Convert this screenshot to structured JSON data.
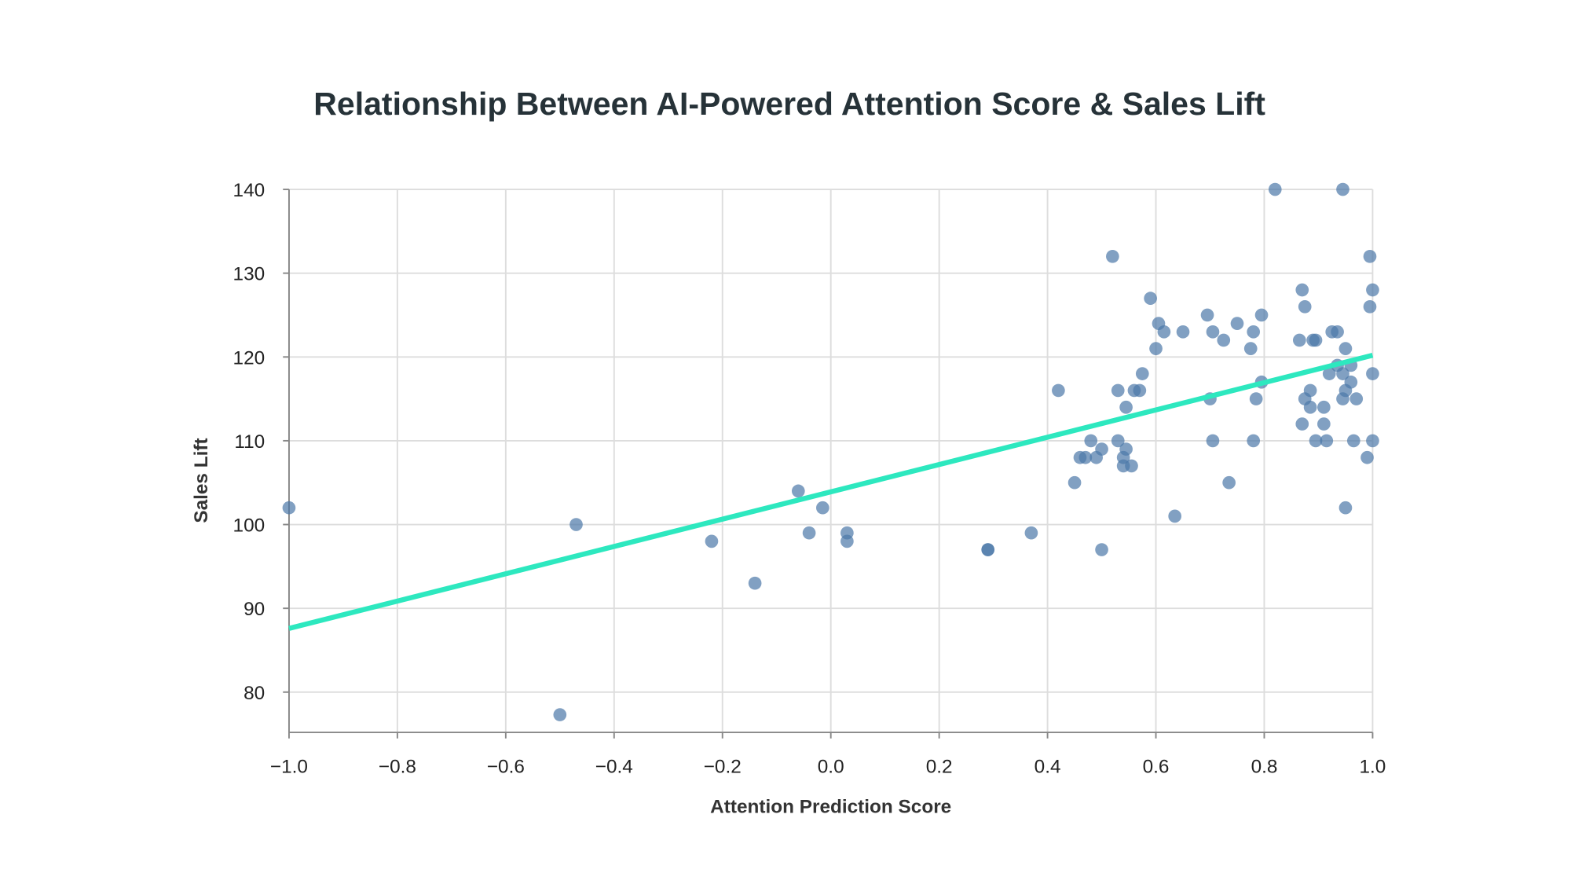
{
  "chart_data": {
    "type": "scatter",
    "title": "Relationship Between AI-Powered Attention Score & Sales Lift",
    "xlabel": "Attention Prediction Score",
    "ylabel": "Sales Lift",
    "xlim": [
      -1.0,
      1.0
    ],
    "ylim": [
      75,
      140
    ],
    "xticks": [
      -1.0,
      -0.8,
      -0.6,
      -0.4,
      -0.2,
      0.0,
      0.2,
      0.4,
      0.6,
      0.8,
      1.0
    ],
    "xtick_labels": [
      "−1.0",
      "−0.8",
      "−0.6",
      "−0.4",
      "−0.2",
      "0.0",
      "0.2",
      "0.4",
      "0.6",
      "0.8",
      "1.0"
    ],
    "yticks": [
      80,
      90,
      100,
      110,
      120,
      130,
      140
    ],
    "ytick_labels": [
      "80",
      "90",
      "100",
      "110",
      "120",
      "130",
      "140"
    ],
    "grid": true,
    "point_color": "#4c78a8",
    "trend_color": "#2de8bf",
    "trendline": {
      "x": [
        -1.0,
        1.0
      ],
      "y": [
        87.6,
        120.2
      ]
    },
    "points": [
      [
        -1.0,
        102
      ],
      [
        -0.5,
        77.3
      ],
      [
        -0.47,
        100
      ],
      [
        -0.22,
        98
      ],
      [
        -0.14,
        93
      ],
      [
        -0.06,
        104
      ],
      [
        -0.04,
        99
      ],
      [
        -0.015,
        102
      ],
      [
        0.03,
        99
      ],
      [
        0.03,
        98
      ],
      [
        0.29,
        97
      ],
      [
        0.29,
        97
      ],
      [
        0.37,
        99
      ],
      [
        0.42,
        116
      ],
      [
        0.45,
        105
      ],
      [
        0.46,
        108
      ],
      [
        0.47,
        108
      ],
      [
        0.48,
        110
      ],
      [
        0.49,
        108
      ],
      [
        0.5,
        97
      ],
      [
        0.5,
        109
      ],
      [
        0.52,
        132
      ],
      [
        0.53,
        110
      ],
      [
        0.53,
        116
      ],
      [
        0.54,
        108
      ],
      [
        0.54,
        107
      ],
      [
        0.545,
        114
      ],
      [
        0.545,
        109
      ],
      [
        0.555,
        107
      ],
      [
        0.56,
        116
      ],
      [
        0.57,
        116
      ],
      [
        0.575,
        118
      ],
      [
        0.59,
        127
      ],
      [
        0.6,
        121
      ],
      [
        0.605,
        124
      ],
      [
        0.615,
        123
      ],
      [
        0.635,
        101
      ],
      [
        0.65,
        123
      ],
      [
        0.695,
        125
      ],
      [
        0.7,
        115
      ],
      [
        0.705,
        123
      ],
      [
        0.705,
        110
      ],
      [
        0.725,
        122
      ],
      [
        0.735,
        105
      ],
      [
        0.75,
        124
      ],
      [
        0.775,
        121
      ],
      [
        0.78,
        123
      ],
      [
        0.78,
        110
      ],
      [
        0.785,
        115
      ],
      [
        0.795,
        117
      ],
      [
        0.795,
        125
      ],
      [
        0.82,
        140
      ],
      [
        0.865,
        122
      ],
      [
        0.87,
        112
      ],
      [
        0.87,
        128
      ],
      [
        0.875,
        115
      ],
      [
        0.875,
        126
      ],
      [
        0.885,
        116
      ],
      [
        0.885,
        114
      ],
      [
        0.89,
        122
      ],
      [
        0.895,
        122
      ],
      [
        0.895,
        110
      ],
      [
        0.91,
        114
      ],
      [
        0.91,
        112
      ],
      [
        0.915,
        110
      ],
      [
        0.92,
        118
      ],
      [
        0.925,
        123
      ],
      [
        0.935,
        123
      ],
      [
        0.935,
        119
      ],
      [
        0.945,
        140
      ],
      [
        0.945,
        115
      ],
      [
        0.945,
        118
      ],
      [
        0.95,
        121
      ],
      [
        0.95,
        116
      ],
      [
        0.95,
        102
      ],
      [
        0.96,
        119
      ],
      [
        0.96,
        117
      ],
      [
        0.965,
        110
      ],
      [
        0.97,
        115
      ],
      [
        0.99,
        108
      ],
      [
        0.995,
        126
      ],
      [
        0.995,
        132
      ],
      [
        1.0,
        128
      ],
      [
        1.0,
        118
      ],
      [
        1.0,
        110
      ]
    ]
  }
}
